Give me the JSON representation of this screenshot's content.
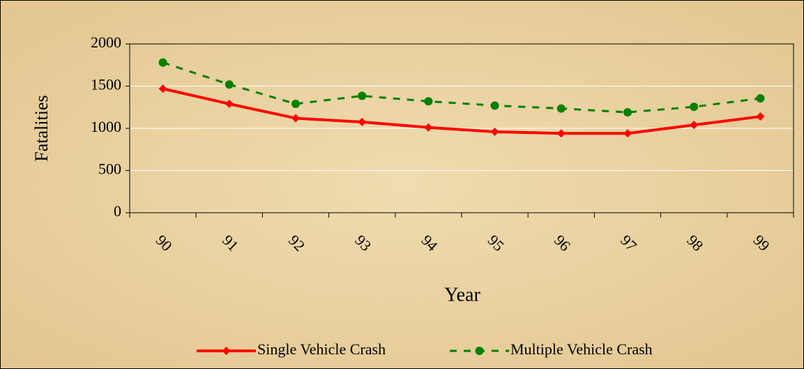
{
  "chart_data": {
    "type": "line",
    "y_label": "Fatalities",
    "x_label": "Year",
    "categories": [
      "90",
      "91",
      "92",
      "93",
      "94",
      "95",
      "96",
      "97",
      "98",
      "99"
    ],
    "series": [
      {
        "name": "Single Vehicle Crash",
        "color": "#ff0000",
        "marker": "diamond",
        "line_style": "solid",
        "values": [
          1470,
          1290,
          1120,
          1075,
          1010,
          960,
          940,
          940,
          1040,
          1140
        ]
      },
      {
        "name": "Multiple Vehicle Crash",
        "color": "#008000",
        "marker": "circle",
        "line_style": "dashed",
        "values": [
          1780,
          1520,
          1290,
          1385,
          1320,
          1270,
          1235,
          1190,
          1255,
          1355
        ]
      }
    ],
    "ylim": [
      0,
      2000
    ],
    "yticks": [
      0,
      500,
      1000,
      1500,
      2000
    ],
    "grid": true,
    "legend": "bottom"
  }
}
